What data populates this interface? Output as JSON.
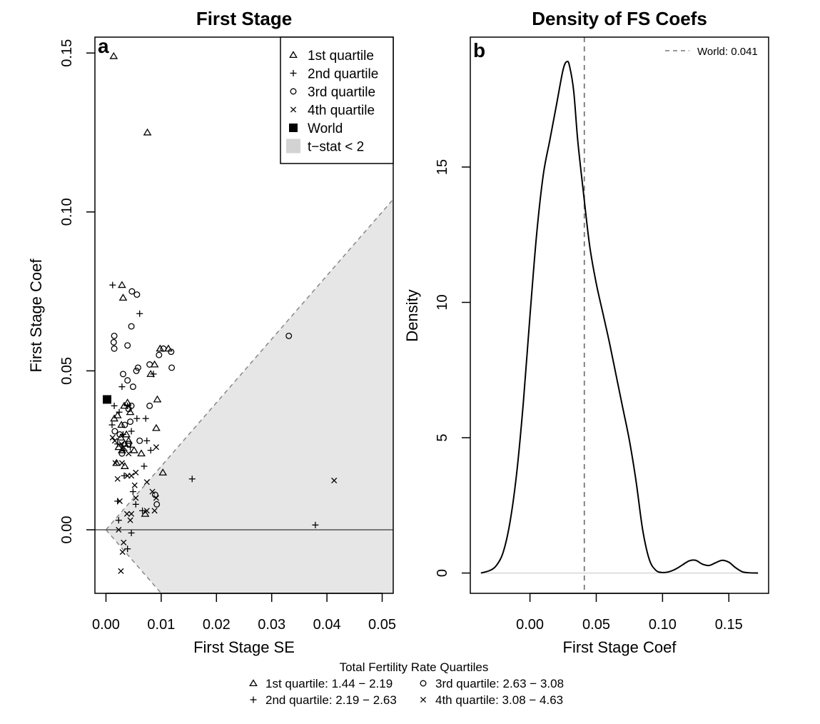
{
  "chart_data": [
    {
      "type": "scatter",
      "title": "First Stage",
      "panel_label": "a",
      "xlabel": "First Stage SE",
      "ylabel": "First Stage Coef",
      "xlim": [
        -0.002,
        0.052
      ],
      "ylim": [
        -0.02,
        0.155
      ],
      "xticks": [
        0.0,
        0.01,
        0.02,
        0.03,
        0.04,
        0.05
      ],
      "xtick_labels": [
        "0.00",
        "0.01",
        "0.02",
        "0.03",
        "0.04",
        "0.05"
      ],
      "yticks": [
        0.0,
        0.05,
        0.1,
        0.15
      ],
      "ytick_labels": [
        "0.00",
        "0.05",
        "0.10",
        "0.15"
      ],
      "shaded_region": {
        "label": "t−stat < 2",
        "color": "#e6e6e6",
        "t_stat": 2
      },
      "hline": 0,
      "legend": {
        "position": "top-right",
        "items": [
          {
            "marker": "triangle",
            "label": "1st  quartile"
          },
          {
            "marker": "plus",
            "label": "2nd quartile"
          },
          {
            "marker": "circle",
            "label": "3rd quartile"
          },
          {
            "marker": "cross",
            "label": "4th quartile"
          },
          {
            "marker": "square",
            "label": "World"
          },
          {
            "marker": "shade",
            "label": "t−stat < 2"
          }
        ]
      },
      "series": [
        {
          "marker": "triangle",
          "points": [
            [
              0.0014,
              0.149
            ],
            [
              0.0075,
              0.125
            ],
            [
              0.0029,
              0.077
            ],
            [
              0.0031,
              0.073
            ],
            [
              0.0098,
              0.057
            ],
            [
              0.0113,
              0.057
            ],
            [
              0.0088,
              0.052
            ],
            [
              0.0081,
              0.049
            ],
            [
              0.0093,
              0.041
            ],
            [
              0.0039,
              0.04
            ],
            [
              0.0015,
              0.035
            ],
            [
              0.0021,
              0.036
            ],
            [
              0.0033,
              0.039
            ],
            [
              0.0044,
              0.037
            ],
            [
              0.0028,
              0.033
            ],
            [
              0.0091,
              0.032
            ],
            [
              0.0037,
              0.03
            ],
            [
              0.0027,
              0.029
            ],
            [
              0.0041,
              0.028
            ],
            [
              0.0034,
              0.027
            ],
            [
              0.0023,
              0.026
            ],
            [
              0.0051,
              0.025
            ],
            [
              0.0029,
              0.025
            ],
            [
              0.0064,
              0.024
            ],
            [
              0.0019,
              0.021
            ],
            [
              0.0034,
              0.02
            ],
            [
              0.0103,
              0.018
            ],
            [
              0.0071,
              0.005
            ]
          ]
        },
        {
          "marker": "plus",
          "points": [
            [
              0.0012,
              0.077
            ],
            [
              0.0061,
              0.068
            ],
            [
              0.0086,
              0.049
            ],
            [
              0.0029,
              0.045
            ],
            [
              0.0015,
              0.039
            ],
            [
              0.0039,
              0.039
            ],
            [
              0.0024,
              0.037
            ],
            [
              0.0056,
              0.035
            ],
            [
              0.0072,
              0.035
            ],
            [
              0.0011,
              0.033
            ],
            [
              0.0046,
              0.031
            ],
            [
              0.0031,
              0.03
            ],
            [
              0.0074,
              0.028
            ],
            [
              0.0021,
              0.027
            ],
            [
              0.0044,
              0.026
            ],
            [
              0.0033,
              0.025
            ],
            [
              0.0081,
              0.025
            ],
            [
              0.0069,
              0.02
            ],
            [
              0.0033,
              0.017
            ],
            [
              0.0156,
              0.016
            ],
            [
              0.0049,
              0.012
            ],
            [
              0.0021,
              0.009
            ],
            [
              0.0054,
              0.008
            ],
            [
              0.0066,
              0.006
            ],
            [
              0.0023,
              0.003
            ],
            [
              0.0379,
              0.0015
            ],
            [
              0.0046,
              -0.001
            ],
            [
              0.0039,
              -0.006
            ]
          ]
        },
        {
          "marker": "circle",
          "points": [
            [
              0.0047,
              0.075
            ],
            [
              0.0056,
              0.074
            ],
            [
              0.0015,
              0.061
            ],
            [
              0.0014,
              0.059
            ],
            [
              0.0015,
              0.057
            ],
            [
              0.0039,
              0.058
            ],
            [
              0.0046,
              0.064
            ],
            [
              0.0118,
              0.056
            ],
            [
              0.0104,
              0.057
            ],
            [
              0.0096,
              0.055
            ],
            [
              0.0331,
              0.061
            ],
            [
              0.0079,
              0.052
            ],
            [
              0.0119,
              0.051
            ],
            [
              0.0058,
              0.051
            ],
            [
              0.0055,
              0.05
            ],
            [
              0.0031,
              0.049
            ],
            [
              0.0039,
              0.047
            ],
            [
              0.0049,
              0.045
            ],
            [
              0.0079,
              0.039
            ],
            [
              0.0046,
              0.039
            ],
            [
              0.0041,
              0.038
            ],
            [
              0.0034,
              0.033
            ],
            [
              0.0044,
              0.034
            ],
            [
              0.0016,
              0.031
            ],
            [
              0.0025,
              0.03
            ],
            [
              0.0061,
              0.028
            ],
            [
              0.0041,
              0.027
            ],
            [
              0.0029,
              0.024
            ],
            [
              0.0092,
              0.008
            ],
            [
              0.0089,
              0.011
            ]
          ]
        },
        {
          "marker": "cross",
          "points": [
            [
              0.0012,
              0.029
            ],
            [
              0.0016,
              0.028
            ],
            [
              0.0028,
              0.027
            ],
            [
              0.0032,
              0.026
            ],
            [
              0.0091,
              0.026
            ],
            [
              0.0041,
              0.024
            ],
            [
              0.0017,
              0.021
            ],
            [
              0.0029,
              0.021
            ],
            [
              0.0046,
              0.017
            ],
            [
              0.0054,
              0.018
            ],
            [
              0.0039,
              0.017
            ],
            [
              0.0021,
              0.016
            ],
            [
              0.0074,
              0.015
            ],
            [
              0.0052,
              0.014
            ],
            [
              0.0084,
              0.012
            ],
            [
              0.0091,
              0.01
            ],
            [
              0.0054,
              0.01
            ],
            [
              0.0025,
              0.009
            ],
            [
              0.0074,
              0.006
            ],
            [
              0.0088,
              0.006
            ],
            [
              0.0046,
              0.005
            ],
            [
              0.0038,
              0.005
            ],
            [
              0.0044,
              0.003
            ],
            [
              0.0413,
              0.0155
            ],
            [
              0.0023,
              0.0
            ],
            [
              0.0032,
              -0.004
            ],
            [
              0.003,
              -0.007
            ],
            [
              0.0027,
              -0.013
            ]
          ]
        },
        {
          "marker": "square",
          "points": [
            [
              0.0002,
              0.041
            ]
          ]
        }
      ]
    },
    {
      "type": "line",
      "title": "Density of FS Coefs",
      "panel_label": "b",
      "xlabel": "First Stage Coef",
      "ylabel": "Density",
      "xlim": [
        -0.045,
        0.18
      ],
      "ylim": [
        -0.75,
        19.8
      ],
      "xticks": [
        0.0,
        0.05,
        0.1,
        0.15
      ],
      "xtick_labels": [
        "0.00",
        "0.05",
        "0.10",
        "0.15"
      ],
      "yticks": [
        0,
        5,
        10,
        15
      ],
      "ytick_labels": [
        "0",
        "5",
        "10",
        "15"
      ],
      "vline": {
        "x": 0.041,
        "label": "World: 0.041",
        "style": "dashed"
      },
      "legend": {
        "position": "top-right"
      },
      "x": [
        -0.037,
        -0.03,
        -0.025,
        -0.02,
        -0.015,
        -0.01,
        -0.005,
        0.0,
        0.005,
        0.01,
        0.015,
        0.02,
        0.025,
        0.028,
        0.03,
        0.033,
        0.036,
        0.04,
        0.045,
        0.05,
        0.055,
        0.06,
        0.065,
        0.07,
        0.075,
        0.08,
        0.085,
        0.09,
        0.095,
        0.1,
        0.105,
        0.11,
        0.115,
        0.12,
        0.125,
        0.13,
        0.135,
        0.14,
        0.145,
        0.15,
        0.155,
        0.16,
        0.165,
        0.172
      ],
      "y": [
        0.0,
        0.1,
        0.3,
        0.8,
        1.9,
        3.7,
        6.3,
        9.5,
        12.5,
        14.7,
        16.0,
        17.3,
        18.6,
        18.9,
        18.7,
        17.8,
        16.0,
        14.2,
        12.1,
        10.7,
        9.6,
        8.5,
        7.3,
        6.1,
        4.9,
        3.4,
        1.6,
        0.5,
        0.1,
        0.02,
        0.05,
        0.15,
        0.3,
        0.45,
        0.47,
        0.33,
        0.28,
        0.38,
        0.47,
        0.4,
        0.2,
        0.05,
        0.01,
        0.0
      ]
    }
  ],
  "caption": {
    "title": "Total Fertility Rate Quartiles",
    "row1": [
      {
        "marker": "triangle",
        "label": "1st  quartile: 1.44 − 2.19"
      },
      {
        "marker": "circle",
        "label": "3rd quartile: 2.63 − 3.08"
      }
    ],
    "row2": [
      {
        "marker": "plus",
        "label": "2nd quartile: 2.19 − 2.63"
      },
      {
        "marker": "cross",
        "label": "4th quartile: 3.08 − 4.63"
      }
    ]
  }
}
